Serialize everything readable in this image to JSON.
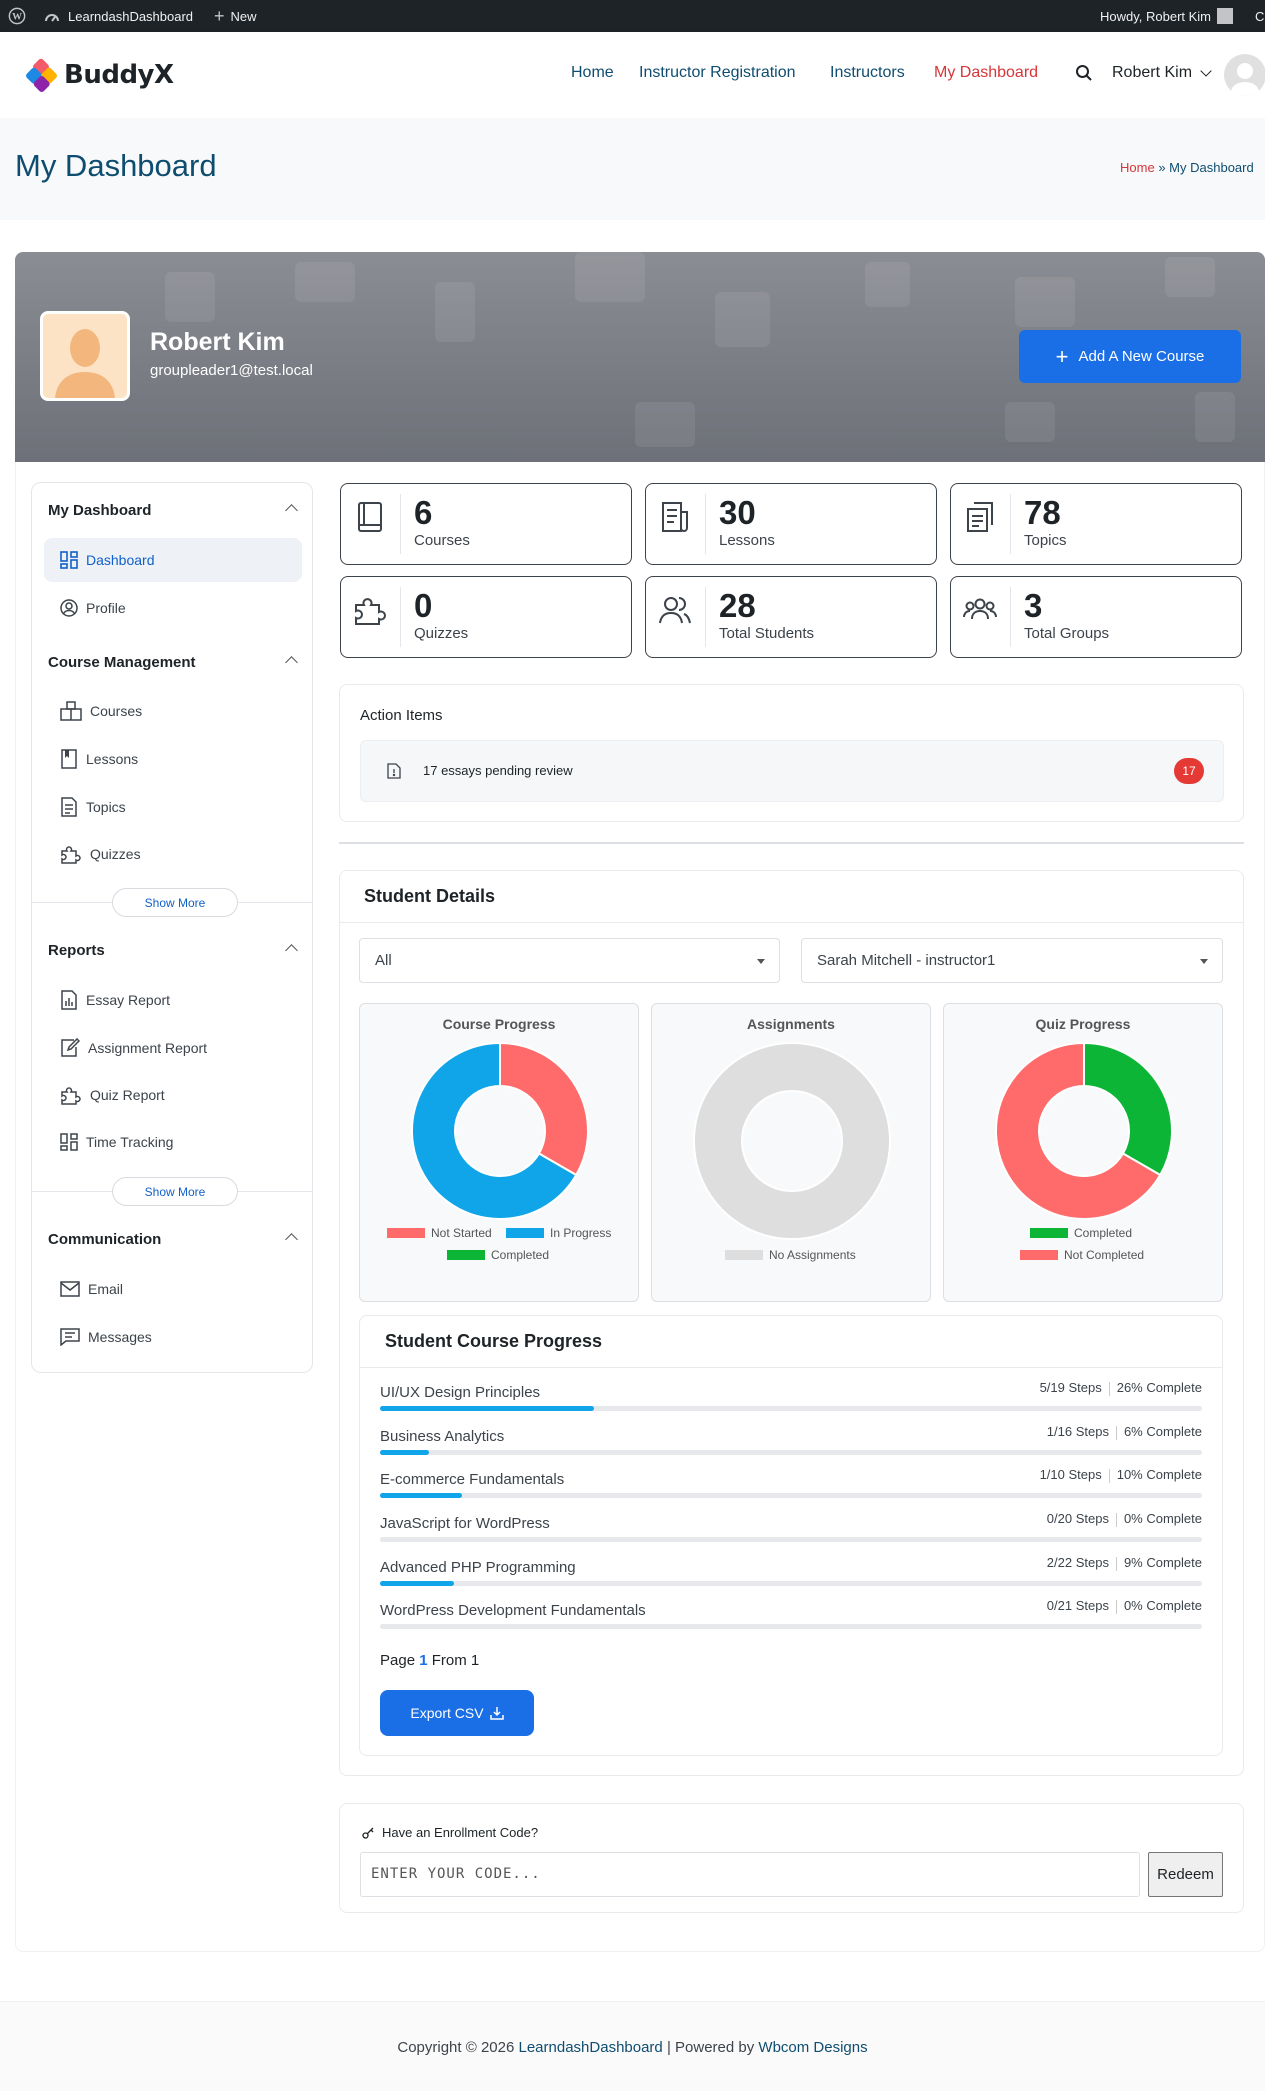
{
  "adminbar": {
    "site": "LearndashDashboard",
    "new": "New",
    "howdy": "Howdy, Robert Kim",
    "cut": "C"
  },
  "header": {
    "logo": "BuddyX",
    "nav": [
      "Home",
      "Instructor Registration",
      "Instructors",
      "My Dashboard"
    ],
    "user": "Robert Kim"
  },
  "titlebar": {
    "title": "My Dashboard",
    "crumb_home": "Home",
    "crumb_sep": "»",
    "crumb_current": "My Dashboard"
  },
  "profile": {
    "name": "Robert Kim",
    "email": "groupleader1@test.local",
    "add_course": "Add A New Course"
  },
  "sidebar": {
    "sec1": "My Dashboard",
    "dashboard": "Dashboard",
    "profile": "Profile",
    "sec2": "Course Management",
    "courses": "Courses",
    "lessons": "Lessons",
    "topics": "Topics",
    "quizzes": "Quizzes",
    "show_more": "Show More",
    "sec3": "Reports",
    "essay": "Essay Report",
    "assignment": "Assignment Report",
    "quiz": "Quiz Report",
    "time": "Time Tracking",
    "sec4": "Communication",
    "email": "Email",
    "messages": "Messages"
  },
  "stats": [
    {
      "num": "6",
      "label": "Courses",
      "icon": "book-icon"
    },
    {
      "num": "30",
      "label": "Lessons",
      "icon": "document-icon"
    },
    {
      "num": "78",
      "label": "Topics",
      "icon": "copy-icon"
    },
    {
      "num": "0",
      "label": "Quizzes",
      "icon": "puzzle-icon"
    },
    {
      "num": "28",
      "label": "Total Students",
      "icon": "users-icon"
    },
    {
      "num": "3",
      "label": "Total Groups",
      "icon": "group-icon"
    }
  ],
  "action": {
    "title": "Action Items",
    "item": "17 essays pending review",
    "badge": "17"
  },
  "students": {
    "title": "Student Details",
    "filter_all": "All",
    "filter_student": "Sarah Mitchell - instructor1",
    "charts": {
      "course": {
        "title": "Course Progress",
        "leg_ns": "Not Started",
        "leg_ip": "In Progress",
        "leg_c": "Completed"
      },
      "assign": {
        "title": "Assignments",
        "leg_na": "No Assignments"
      },
      "quiz": {
        "title": "Quiz Progress",
        "leg_c": "Completed",
        "leg_nc": "Not Completed"
      }
    }
  },
  "chart_data": [
    {
      "type": "pie",
      "title": "Course Progress",
      "labels": [
        "Not Started",
        "In Progress",
        "Completed"
      ],
      "values": [
        2,
        4,
        0
      ],
      "colors": [
        "#ff6b6b",
        "#10a5e8",
        "#0db537"
      ]
    },
    {
      "type": "pie",
      "title": "Assignments",
      "labels": [
        "No Assignments"
      ],
      "values": [
        1
      ],
      "colors": [
        "#dedede"
      ]
    },
    {
      "type": "pie",
      "title": "Quiz Progress",
      "labels": [
        "Completed",
        "Not Completed"
      ],
      "values": [
        1,
        2
      ],
      "colors": [
        "#0db537",
        "#ff6b6b"
      ]
    }
  ],
  "progress": {
    "title": "Student Course Progress",
    "rows": [
      {
        "name": "UI/UX Design Principles",
        "steps": "5/19 Steps",
        "pct": "26% Complete",
        "fill": 0.26
      },
      {
        "name": "Business Analytics",
        "steps": "1/16 Steps",
        "pct": "6% Complete",
        "fill": 0.06
      },
      {
        "name": "E-commerce Fundamentals",
        "steps": "1/10 Steps",
        "pct": "10% Complete",
        "fill": 0.1
      },
      {
        "name": "JavaScript for WordPress",
        "steps": "0/20 Steps",
        "pct": "0% Complete",
        "fill": 0
      },
      {
        "name": "Advanced PHP Programming",
        "steps": "2/22 Steps",
        "pct": "9% Complete",
        "fill": 0.09
      },
      {
        "name": "WordPress Development Fundamentals",
        "steps": "0/21 Steps",
        "pct": "0% Complete",
        "fill": 0
      }
    ],
    "page_a": "Page",
    "page_n": "1",
    "page_b": "From 1",
    "export": "Export CSV"
  },
  "enroll": {
    "title": "Have an Enrollment Code?",
    "placeholder": "ENTER YOUR CODE...",
    "redeem": "Redeem"
  },
  "footer": {
    "a": "Copyright © 2026",
    "site": "LearndashDashboard",
    "b": "| Powered by",
    "c": "Wbcom Designs"
  },
  "colors": {
    "accent": "#1a6ee6",
    "nav_active": "#d63638",
    "navy": "#0f4d70",
    "badge": "#e53935"
  }
}
